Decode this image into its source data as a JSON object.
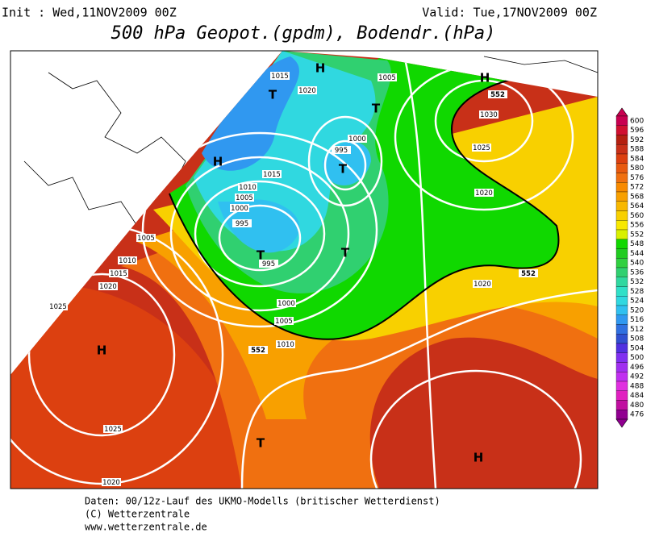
{
  "header": {
    "init": "Init : Wed,11NOV2009 00Z",
    "valid": "Valid: Tue,17NOV2009 00Z",
    "title": "500 hPa Geopot.(gpdm), Bodendr.(hPa)"
  },
  "map_labels": [
    "H",
    "T",
    "T",
    "H",
    "H",
    "T",
    "T",
    "T",
    "H",
    "T",
    "H",
    "1015",
    "1020",
    "1005",
    "1030",
    "1025",
    "1000",
    "995",
    "1015",
    "1010",
    "1005",
    "1000",
    "995",
    "1020",
    "1005",
    "1010",
    "1015",
    "1020",
    "1025",
    "995",
    "1000",
    "1005",
    "1010",
    "1020",
    "1025",
    "1020",
    "552",
    "552",
    "552"
  ],
  "legend": {
    "values": [
      600,
      596,
      592,
      588,
      584,
      580,
      576,
      572,
      568,
      564,
      560,
      556,
      552,
      548,
      544,
      540,
      536,
      532,
      528,
      524,
      520,
      516,
      512,
      508,
      504,
      500,
      496,
      492,
      488,
      484,
      480,
      476
    ],
    "colors": [
      "#c80050",
      "#d01030",
      "#b42010",
      "#c83018",
      "#dc4010",
      "#e85a10",
      "#f07010",
      "#f88a00",
      "#f8a000",
      "#f8b800",
      "#f8d000",
      "#f8e800",
      "#d8f000",
      "#10d800",
      "#20cc20",
      "#30d040",
      "#30d070",
      "#30d8a0",
      "#30e0c8",
      "#30d8e0",
      "#30c0f0",
      "#3098f0",
      "#3070e0",
      "#3050d0",
      "#5030e0",
      "#8030f0",
      "#a030f0",
      "#c030f0",
      "#e030e0",
      "#e020c0",
      "#c010a0",
      "#900090"
    ]
  },
  "footer": [
    "Daten: 00/12z-Lauf des UKMO-Modells (britischer Wetterdienst)",
    "(C) Wetterzentrale",
    "www.wetterzentrale.de"
  ]
}
